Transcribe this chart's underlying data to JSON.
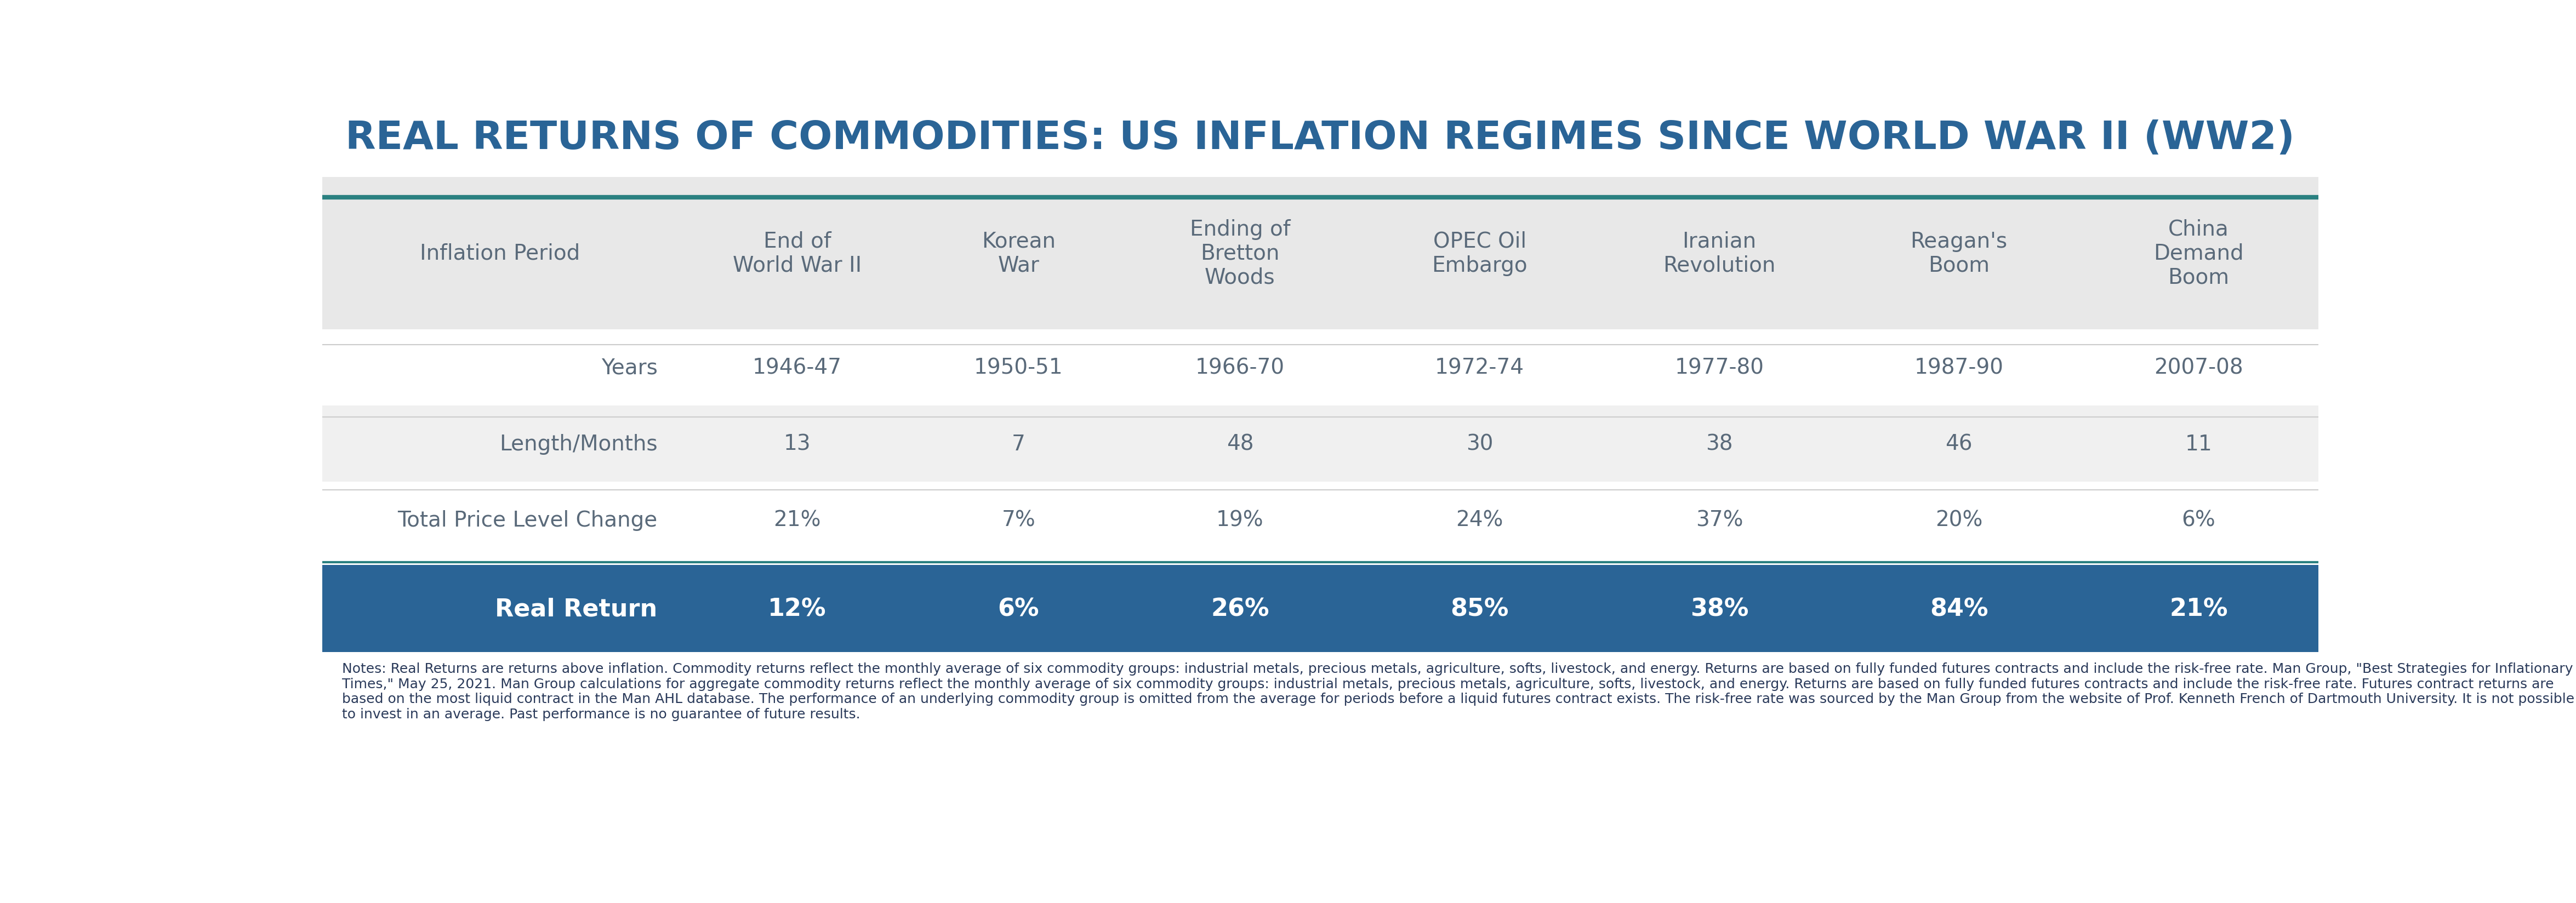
{
  "title": "REAL RETURNS OF COMMODITIES: US INFLATION REGIMES SINCE WORLD WAR II (WW2)",
  "title_color": "#2a6496",
  "title_fontsize": 52,
  "bg_color": "#ffffff",
  "header_bg": "#e8e8e8",
  "header_text_color": "#5a6a7a",
  "row_colors": [
    "#ffffff",
    "#f0f0f0",
    "#ffffff"
  ],
  "bottom_row_bg": "#2a6496",
  "bottom_row_text_color": "#ffffff",
  "top_border_color": "#2a8080",
  "columns": [
    "Inflation Period",
    "End of\nWorld War II",
    "Korean\nWar",
    "Ending of\nBretton\nWoods",
    "OPEC Oil\nEmbargo",
    "Iranian\nRevolution",
    "Reagan's\nBoom",
    "China\nDemand\nBoom"
  ],
  "rows": [
    [
      "Years",
      "1946-47",
      "1950-51",
      "1966-70",
      "1972-74",
      "1977-80",
      "1987-90",
      "2007-08"
    ],
    [
      "Length/Months",
      "13",
      "7",
      "48",
      "30",
      "38",
      "46",
      "11"
    ],
    [
      "Total Price Level Change",
      "21%",
      "7%",
      "19%",
      "24%",
      "37%",
      "20%",
      "6%"
    ]
  ],
  "bottom_row": [
    "Real Return",
    "12%",
    "6%",
    "26%",
    "85%",
    "38%",
    "84%",
    "21%"
  ],
  "footer_text": "Notes: Real Returns are returns above inflation. Commodity returns reflect the monthly average of six commodity groups: industrial metals, precious metals, agriculture, softs, livestock, and energy. Returns are based on fully funded futures contracts and include the risk-free rate. Man Group, \"Best Strategies for Inflationary Times,\" May 25, 2021. Man Group calculations for aggregate commodity returns reflect the monthly average of six commodity groups: industrial metals, precious metals, agriculture, softs, livestock, and energy. Returns are based on fully funded futures contracts and include the risk-free rate. Futures contract returns are based on the most liquid contract in the Man AHL database. The performance of an underlying commodity group is omitted from the average for periods before a liquid futures contract exists. The risk-free rate was sourced by the Man Group from the website of Prof. Kenneth French of Dartmouth University. It is not possible to invest in an average. Past performance is no guarantee of future results.",
  "footer_fontsize": 18,
  "footer_color": "#2a3a5a"
}
